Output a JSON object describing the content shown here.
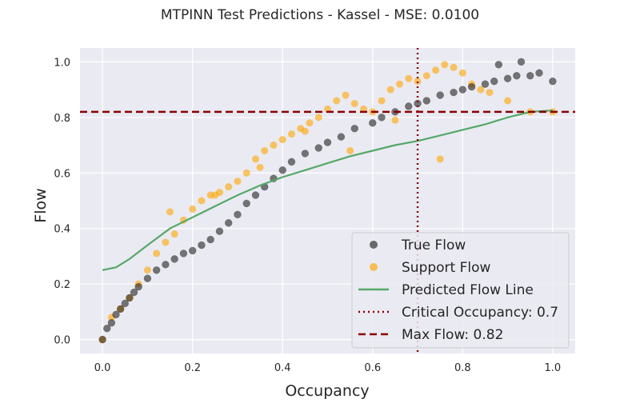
{
  "chart_data": {
    "type": "scatter",
    "title": "MTPINN Test Predictions - Kassel - MSE: 0.0100",
    "xlabel": "Occupancy",
    "ylabel": "Flow",
    "xlim": [
      -0.05,
      1.05
    ],
    "ylim": [
      -0.05,
      1.05
    ],
    "xticks": [
      0.0,
      0.2,
      0.4,
      0.6,
      0.8,
      1.0
    ],
    "yticks": [
      0.0,
      0.2,
      0.4,
      0.6,
      0.8,
      1.0
    ],
    "xtick_labels": [
      "0.0",
      "0.2",
      "0.4",
      "0.6",
      "0.8",
      "1.0"
    ],
    "ytick_labels": [
      "0.0",
      "0.2",
      "0.4",
      "0.6",
      "0.8",
      "1.0"
    ],
    "grid": true,
    "legend_position": "lower-right",
    "colors": {
      "plot_bg": "#EAEAF2",
      "true_flow": "#222222",
      "support_flow": "#FFA500",
      "predicted_line": "#55A868",
      "critical_line": "#8B0000",
      "max_line": "#8B0000"
    },
    "series": [
      {
        "name": "True Flow",
        "kind": "scatter",
        "x": [
          0.0,
          0.01,
          0.02,
          0.03,
          0.04,
          0.05,
          0.06,
          0.07,
          0.08,
          0.1,
          0.12,
          0.14,
          0.16,
          0.18,
          0.2,
          0.22,
          0.24,
          0.26,
          0.28,
          0.3,
          0.32,
          0.34,
          0.36,
          0.38,
          0.4,
          0.42,
          0.45,
          0.48,
          0.5,
          0.53,
          0.56,
          0.6,
          0.62,
          0.65,
          0.68,
          0.7,
          0.72,
          0.75,
          0.78,
          0.8,
          0.82,
          0.85,
          0.87,
          0.9,
          0.92,
          0.95,
          0.97,
          1.0,
          0.88,
          0.93
        ],
        "y": [
          0.0,
          0.04,
          0.06,
          0.09,
          0.11,
          0.13,
          0.15,
          0.17,
          0.19,
          0.22,
          0.25,
          0.27,
          0.29,
          0.31,
          0.32,
          0.34,
          0.36,
          0.39,
          0.42,
          0.45,
          0.49,
          0.52,
          0.55,
          0.58,
          0.61,
          0.64,
          0.67,
          0.69,
          0.71,
          0.73,
          0.76,
          0.78,
          0.8,
          0.82,
          0.84,
          0.85,
          0.86,
          0.88,
          0.89,
          0.9,
          0.91,
          0.92,
          0.93,
          0.94,
          0.95,
          0.95,
          0.96,
          0.93,
          0.99,
          1.0
        ]
      },
      {
        "name": "Support Flow",
        "kind": "scatter",
        "x": [
          0.0,
          0.02,
          0.04,
          0.06,
          0.08,
          0.1,
          0.12,
          0.14,
          0.16,
          0.18,
          0.2,
          0.22,
          0.24,
          0.26,
          0.28,
          0.3,
          0.32,
          0.34,
          0.36,
          0.38,
          0.4,
          0.42,
          0.44,
          0.46,
          0.48,
          0.5,
          0.52,
          0.54,
          0.56,
          0.58,
          0.6,
          0.62,
          0.64,
          0.66,
          0.68,
          0.7,
          0.72,
          0.74,
          0.76,
          0.78,
          0.8,
          0.82,
          0.84,
          0.86,
          0.9,
          0.95,
          1.0,
          0.15,
          0.25,
          0.35,
          0.45,
          0.55,
          0.65,
          0.75
        ],
        "y": [
          0.0,
          0.08,
          0.11,
          0.15,
          0.2,
          0.25,
          0.31,
          0.35,
          0.38,
          0.43,
          0.47,
          0.5,
          0.52,
          0.53,
          0.55,
          0.57,
          0.6,
          0.65,
          0.68,
          0.7,
          0.72,
          0.74,
          0.76,
          0.78,
          0.8,
          0.83,
          0.86,
          0.88,
          0.85,
          0.83,
          0.82,
          0.86,
          0.9,
          0.92,
          0.94,
          0.93,
          0.95,
          0.97,
          0.99,
          0.98,
          0.96,
          0.92,
          0.9,
          0.89,
          0.86,
          0.82,
          0.82,
          0.46,
          0.52,
          0.62,
          0.75,
          0.68,
          0.79,
          0.65
        ]
      },
      {
        "name": "Predicted Flow Line",
        "kind": "line",
        "x": [
          0.0,
          0.03,
          0.06,
          0.1,
          0.15,
          0.2,
          0.25,
          0.3,
          0.35,
          0.4,
          0.45,
          0.5,
          0.55,
          0.6,
          0.65,
          0.7,
          0.75,
          0.8,
          0.85,
          0.9,
          0.95,
          1.0
        ],
        "y": [
          0.25,
          0.26,
          0.29,
          0.34,
          0.4,
          0.44,
          0.48,
          0.52,
          0.555,
          0.585,
          0.61,
          0.635,
          0.66,
          0.68,
          0.7,
          0.715,
          0.735,
          0.755,
          0.775,
          0.8,
          0.82,
          0.825
        ]
      }
    ],
    "reference_lines": [
      {
        "name": "Critical Occupancy: 0.7",
        "orientation": "vertical",
        "value": 0.7,
        "style": "dotted"
      },
      {
        "name": "Max Flow: 0.82",
        "orientation": "horizontal",
        "value": 0.82,
        "style": "dashed"
      }
    ]
  }
}
